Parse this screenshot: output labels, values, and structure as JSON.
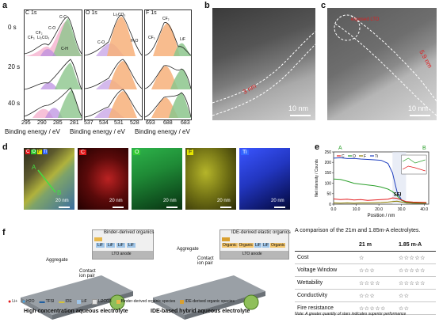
{
  "panels": {
    "a": "a",
    "b": "b",
    "c": "c",
    "d": "d",
    "e": "e",
    "f": "f"
  },
  "xps": {
    "rows": [
      "0 s",
      "20 s",
      "40 s"
    ],
    "columns": [
      {
        "title": "C 1s",
        "ticks": [
          "295",
          "290",
          "285",
          "281"
        ],
        "peaks": [
          "C-C",
          "C-O",
          "CF3",
          "Li2CO3",
          "CF2",
          "C-H"
        ]
      },
      {
        "title": "O 1s",
        "ticks": [
          "537",
          "534",
          "531",
          "528"
        ],
        "peaks": [
          "Li2CO3",
          "C-O",
          "H2O"
        ]
      },
      {
        "title": "F 1s",
        "ticks": [
          "693",
          "688",
          "683"
        ],
        "peaks": [
          "CF2",
          "CF3",
          "LiF"
        ]
      }
    ],
    "xlabel": "Binding energy / eV"
  },
  "tem_b": {
    "label": "3 nm",
    "scale": "10 nm"
  },
  "tem_c": {
    "label": "5.9 nm",
    "annotation": "exposed LTO",
    "scale": "10 nm"
  },
  "maps": [
    {
      "label": "C",
      "color": "#e31a1c",
      "scale": "20 nm"
    },
    {
      "label": "O",
      "color": "#33cc33",
      "scale": "20 nm"
    },
    {
      "label": "F",
      "color": "#e6e600",
      "scale": "20 nm"
    },
    {
      "label": "Ti",
      "color": "#3366ff",
      "scale": "20 nm"
    }
  ],
  "composite": {
    "labels": [
      "C",
      "O",
      "F",
      "Ti"
    ],
    "scale": "20 nm",
    "line_a": "A",
    "line_b": "B"
  },
  "chart_e": {
    "type": "line",
    "xlabel": "Position / nm",
    "ylabel": "Net intensity / Counts",
    "xticks": [
      "0.0",
      "10.0",
      "20.0",
      "30.0",
      "40.0"
    ],
    "yticks": [
      "0",
      "50",
      "100",
      "150",
      "200",
      "250"
    ],
    "marker_a": "A",
    "marker_b": "B",
    "annotation": "SEI",
    "legend": [
      "C",
      "O",
      "F",
      "Ti"
    ],
    "colors": {
      "C": "#e31a1c",
      "O": "#2ca02c",
      "F": "#8c7d00",
      "Ti": "#1f3fbf"
    }
  },
  "chart_data": {
    "type": "line",
    "xlabel": "Position / nm",
    "ylabel": "Net intensity / Counts",
    "xlim": [
      0,
      42
    ],
    "ylim": [
      0,
      250
    ],
    "series": [
      {
        "name": "Ti",
        "x": [
          0,
          3,
          6,
          9,
          12,
          15,
          18,
          21,
          24,
          26,
          28,
          30,
          32,
          35,
          38,
          41
        ],
        "y": [
          220,
          222,
          218,
          219,
          216,
          214,
          212,
          210,
          195,
          150,
          60,
          20,
          8,
          5,
          4,
          3
        ]
      },
      {
        "name": "O",
        "x": [
          0,
          3,
          6,
          9,
          12,
          15,
          18,
          21,
          24,
          26,
          28,
          30,
          32,
          35,
          38,
          41
        ],
        "y": [
          120,
          118,
          110,
          100,
          96,
          92,
          88,
          82,
          72,
          60,
          40,
          18,
          10,
          8,
          6,
          5
        ]
      },
      {
        "name": "C",
        "x": [
          0,
          3,
          6,
          9,
          12,
          15,
          18,
          21,
          24,
          26,
          28,
          30,
          32,
          35,
          38,
          41
        ],
        "y": [
          25,
          22,
          24,
          20,
          22,
          18,
          20,
          22,
          24,
          30,
          28,
          20,
          12,
          10,
          9,
          8
        ]
      },
      {
        "name": "F",
        "x": [
          0,
          3,
          6,
          9,
          12,
          15,
          18,
          21,
          24,
          26,
          28,
          30,
          32,
          35,
          38,
          41
        ],
        "y": [
          6,
          5,
          6,
          5,
          6,
          6,
          7,
          8,
          10,
          12,
          14,
          10,
          6,
          5,
          4,
          4
        ]
      }
    ]
  },
  "schematic": {
    "left": {
      "title": "High concentration aqueous electrolyte",
      "legend_box": "Binder-derived organics",
      "labels": [
        "Aggregate",
        "Contact ion pair"
      ],
      "coating": [
        "LiF",
        "LiF",
        "LiF",
        "LiF"
      ],
      "substrate": "LTO anode"
    },
    "right": {
      "title": "IDE-based hybrid aqueous electrolyte",
      "legend_box": "IDE-derived elastic organics",
      "labels": [
        "Aggregate",
        "Contact ion pair"
      ],
      "coating": [
        "Organic",
        "Organic",
        "LiF",
        "LiF",
        "Organic"
      ],
      "substrate": "LTO anode"
    },
    "legend": [
      "Li+",
      "H2O",
      "TFSI",
      "IDE",
      "LiF",
      "Li2CO3",
      "Binder-derived organic species",
      "IDE-derived organic species"
    ]
  },
  "table": {
    "title": "A comparison of the 21m and 1.85m-A electrolytes.",
    "headers": [
      "",
      "21 m",
      "1.85 m-A"
    ],
    "rows": [
      {
        "label": "Cost",
        "a": "☆",
        "b": "☆☆☆☆☆"
      },
      {
        "label": "Voltage Window",
        "a": "☆☆☆",
        "b": "☆☆☆☆☆"
      },
      {
        "label": "Wettability",
        "a": "☆☆☆☆",
        "b": "☆☆☆☆☆"
      },
      {
        "label": "Conductivity",
        "a": "☆☆☆",
        "b": "☆☆"
      },
      {
        "label": "Fire resistance",
        "a": "☆☆☆☆☆",
        "b": "☆☆"
      }
    ],
    "note": "Note: A greater quantity of stars indicates superior performance"
  }
}
